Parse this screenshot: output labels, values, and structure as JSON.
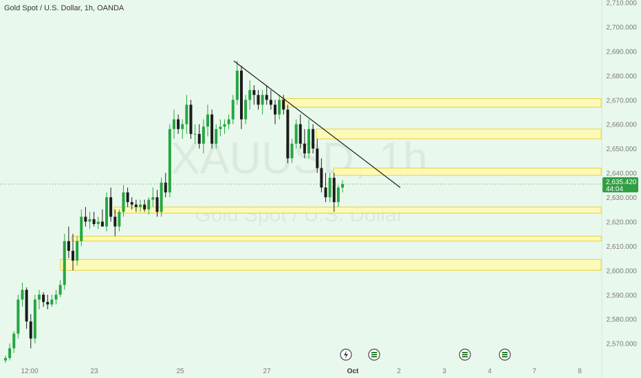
{
  "chart_data": {
    "type": "candlestick",
    "title": "Gold Spot / U.S. Dollar, 1h, OANDA",
    "watermark_ticker": "XAUUSD, 1h",
    "watermark_name": "Gold Spot / U.S. Dollar",
    "y_axis": {
      "ticks": [
        "2,570.000",
        "2,580.000",
        "2,590.000",
        "2,600.000",
        "2,610.000",
        "2,620.000",
        "2,630.000",
        "2,640.000",
        "2,650.000",
        "2,660.000",
        "2,670.000",
        "2,680.000",
        "2,690.000",
        "2,700.000",
        "2,710.000"
      ],
      "min": 2562,
      "max": 2711
    },
    "x_axis": {
      "ticks": [
        "12:00",
        "23",
        "25",
        "27",
        "Oct",
        "2",
        "3",
        "4",
        "7",
        "8"
      ]
    },
    "current_price": "2,635.420",
    "countdown": "44:04",
    "zones": [
      {
        "low": 2667,
        "high": 2670.5
      },
      {
        "low": 2654,
        "high": 2658
      },
      {
        "low": 2639,
        "high": 2642
      },
      {
        "low": 2623.5,
        "high": 2626
      },
      {
        "low": 2612,
        "high": 2614
      },
      {
        "low": 2600,
        "high": 2604.5
      }
    ],
    "trendline": {
      "x1": "Sep 26 ~10:00",
      "y1": 2686,
      "x2": "Oct 1 ~13:00",
      "y2": 2634
    },
    "candles": [
      [
        2563,
        2565,
        2562,
        2564
      ],
      [
        2564,
        2570,
        2563,
        2568
      ],
      [
        2568,
        2575,
        2566,
        2574
      ],
      [
        2574,
        2590,
        2572,
        2588
      ],
      [
        2588,
        2595,
        2585,
        2592
      ],
      [
        2592,
        2593,
        2576,
        2579
      ],
      [
        2579,
        2582,
        2568,
        2572
      ],
      [
        2572,
        2590,
        2570,
        2588
      ],
      [
        2588,
        2592,
        2584,
        2590
      ],
      [
        2590,
        2591,
        2585,
        2587
      ],
      [
        2587,
        2590,
        2584,
        2586
      ],
      [
        2586,
        2590,
        2585,
        2588
      ],
      [
        2588,
        2592,
        2586,
        2590
      ],
      [
        2590,
        2596,
        2589,
        2594
      ],
      [
        2594,
        2615,
        2592,
        2612
      ],
      [
        2612,
        2618,
        2605,
        2608
      ],
      [
        2608,
        2615,
        2600,
        2604
      ],
      [
        2604,
        2614,
        2602,
        2612
      ],
      [
        2612,
        2625,
        2610,
        2622
      ],
      [
        2622,
        2626,
        2618,
        2620
      ],
      [
        2620,
        2624,
        2617,
        2621
      ],
      [
        2621,
        2624,
        2618,
        2619
      ],
      [
        2619,
        2622,
        2617,
        2620
      ],
      [
        2620,
        2625,
        2618,
        2618
      ],
      [
        2618,
        2632,
        2616,
        2630
      ],
      [
        2630,
        2634,
        2620,
        2622
      ],
      [
        2622,
        2625,
        2614,
        2618
      ],
      [
        2618,
        2625,
        2616,
        2624
      ],
      [
        2624,
        2635,
        2622,
        2632
      ],
      [
        2632,
        2634,
        2626,
        2628
      ],
      [
        2628,
        2630,
        2625,
        2627
      ],
      [
        2627,
        2629,
        2624,
        2626
      ],
      [
        2626,
        2629,
        2624,
        2627
      ],
      [
        2627,
        2629,
        2624,
        2625
      ],
      [
        2625,
        2630,
        2623,
        2629
      ],
      [
        2629,
        2634,
        2626,
        2630
      ],
      [
        2630,
        2633,
        2622,
        2624
      ],
      [
        2624,
        2638,
        2622,
        2636
      ],
      [
        2636,
        2640,
        2630,
        2632
      ],
      [
        2632,
        2660,
        2630,
        2658
      ],
      [
        2658,
        2666,
        2654,
        2662
      ],
      [
        2662,
        2664,
        2656,
        2658
      ],
      [
        2658,
        2662,
        2654,
        2660
      ],
      [
        2660,
        2672,
        2656,
        2668
      ],
      [
        2668,
        2670,
        2654,
        2656
      ],
      [
        2656,
        2660,
        2652,
        2656
      ],
      [
        2656,
        2660,
        2650,
        2652
      ],
      [
        2652,
        2662,
        2648,
        2659
      ],
      [
        2659,
        2668,
        2655,
        2664
      ],
      [
        2664,
        2666,
        2650,
        2652
      ],
      [
        2652,
        2660,
        2650,
        2658
      ],
      [
        2658,
        2662,
        2655,
        2659
      ],
      [
        2659,
        2662,
        2656,
        2660
      ],
      [
        2660,
        2664,
        2658,
        2662
      ],
      [
        2662,
        2672,
        2660,
        2670
      ],
      [
        2670,
        2686,
        2668,
        2682
      ],
      [
        2682,
        2684,
        2658,
        2662
      ],
      [
        2662,
        2672,
        2660,
        2670
      ],
      [
        2670,
        2678,
        2666,
        2674
      ],
      [
        2674,
        2676,
        2668,
        2672
      ],
      [
        2672,
        2674,
        2666,
        2668
      ],
      [
        2668,
        2674,
        2664,
        2672
      ],
      [
        2672,
        2676,
        2668,
        2670
      ],
      [
        2670,
        2674,
        2666,
        2668
      ],
      [
        2668,
        2670,
        2660,
        2664
      ],
      [
        2664,
        2672,
        2662,
        2670
      ],
      [
        2670,
        2672,
        2664,
        2666
      ],
      [
        2666,
        2668,
        2644,
        2646
      ],
      [
        2646,
        2654,
        2644,
        2652
      ],
      [
        2652,
        2662,
        2650,
        2660
      ],
      [
        2660,
        2664,
        2650,
        2652
      ],
      [
        2652,
        2658,
        2646,
        2648
      ],
      [
        2648,
        2662,
        2646,
        2658
      ],
      [
        2658,
        2660,
        2648,
        2650
      ],
      [
        2650,
        2654,
        2640,
        2642
      ],
      [
        2642,
        2646,
        2632,
        2634
      ],
      [
        2634,
        2640,
        2628,
        2630
      ],
      [
        2630,
        2640,
        2628,
        2638
      ],
      [
        2638,
        2640,
        2624,
        2628
      ],
      [
        2628,
        2635,
        2626,
        2634
      ],
      [
        2634,
        2637,
        2632,
        2635.42
      ]
    ]
  }
}
